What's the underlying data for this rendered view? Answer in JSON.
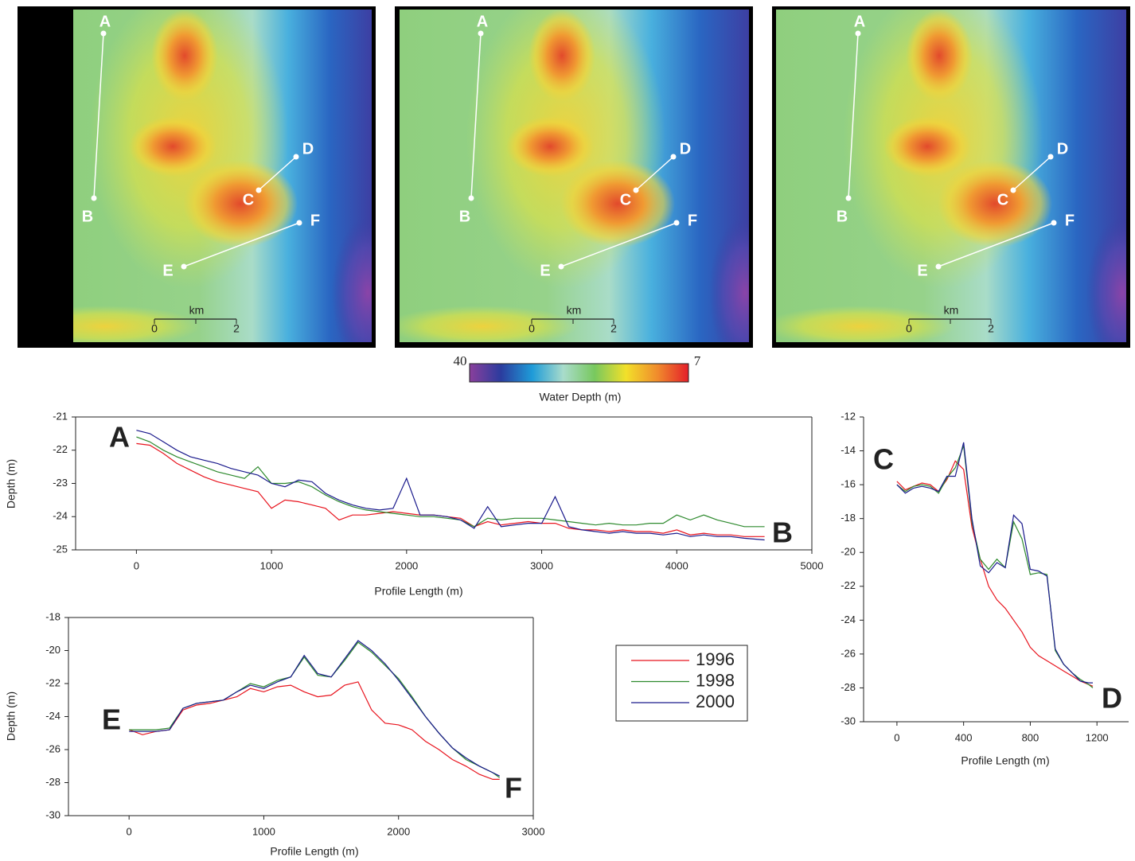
{
  "maps": [
    {
      "points": [
        "A",
        "B",
        "C",
        "D",
        "E",
        "F"
      ],
      "scale_title": "km",
      "scale_ticks": [
        0,
        2
      ]
    },
    {
      "points": [
        "A",
        "B",
        "C",
        "D",
        "E",
        "F"
      ],
      "scale_title": "km",
      "scale_ticks": [
        0,
        2
      ]
    },
    {
      "points": [
        "A",
        "B",
        "C",
        "D",
        "E",
        "F"
      ],
      "scale_title": "km",
      "scale_ticks": [
        0,
        2
      ]
    }
  ],
  "colorbar": {
    "range": [
      40,
      7
    ],
    "title": "Water Depth (m)",
    "colors": [
      "#8a3f9c",
      "#2b3c9e",
      "#1e9bd8",
      "#a9dccb",
      "#78c85e",
      "#f2e02a",
      "#f08c2c",
      "#e41e2a"
    ]
  },
  "chart_data": [
    {
      "type": "line",
      "annotations": [
        "A",
        "B"
      ],
      "xlabel": "Profile Length (m)",
      "ylabel": "Depth (m)",
      "xlim": [
        -450,
        5000
      ],
      "xticks": [
        0,
        1000,
        2000,
        3000,
        4000,
        5000
      ],
      "ylim": [
        -25,
        -21
      ],
      "yticks": [
        -21,
        -22,
        -23,
        -24,
        -25
      ],
      "x": [
        0,
        100,
        200,
        300,
        400,
        500,
        600,
        700,
        800,
        900,
        1000,
        1100,
        1200,
        1300,
        1400,
        1500,
        1600,
        1700,
        1800,
        1900,
        2000,
        2100,
        2200,
        2300,
        2400,
        2500,
        2600,
        2700,
        2800,
        2900,
        3000,
        3100,
        3200,
        3300,
        3400,
        3500,
        3600,
        3700,
        3800,
        3900,
        4000,
        4100,
        4200,
        4300,
        4400,
        4500,
        4650
      ],
      "series": [
        {
          "name": "1996",
          "color": "#e8141e",
          "values": [
            -21.8,
            -21.85,
            -22.1,
            -22.4,
            -22.6,
            -22.8,
            -22.95,
            -23.05,
            -23.15,
            -23.25,
            -23.75,
            -23.5,
            -23.55,
            -23.65,
            -23.75,
            -24.1,
            -23.95,
            -23.95,
            -23.9,
            -23.85,
            -23.9,
            -23.95,
            -23.95,
            -24.0,
            -24.05,
            -24.3,
            -24.15,
            -24.25,
            -24.2,
            -24.15,
            -24.2,
            -24.2,
            -24.35,
            -24.4,
            -24.4,
            -24.45,
            -24.4,
            -24.45,
            -24.45,
            -24.5,
            -24.4,
            -24.55,
            -24.5,
            -24.55,
            -24.55,
            -24.6,
            -24.6
          ]
        },
        {
          "name": "1998",
          "color": "#2e8a2e",
          "values": [
            -21.6,
            -21.75,
            -22.0,
            -22.2,
            -22.35,
            -22.5,
            -22.65,
            -22.75,
            -22.85,
            -22.5,
            -23.0,
            -23.0,
            -22.95,
            -23.1,
            -23.35,
            -23.55,
            -23.7,
            -23.8,
            -23.85,
            -23.9,
            -23.95,
            -24.0,
            -24.0,
            -24.05,
            -24.1,
            -24.3,
            -24.05,
            -24.1,
            -24.05,
            -24.05,
            -24.05,
            -24.1,
            -24.15,
            -24.2,
            -24.25,
            -24.2,
            -24.25,
            -24.25,
            -24.2,
            -24.2,
            -23.95,
            -24.1,
            -23.95,
            -24.1,
            -24.2,
            -24.3,
            -24.3
          ]
        },
        {
          "name": "2000",
          "color": "#1a1a8c",
          "values": [
            -21.4,
            -21.5,
            -21.75,
            -22.0,
            -22.2,
            -22.3,
            -22.4,
            -22.55,
            -22.65,
            -22.75,
            -23.0,
            -23.1,
            -22.9,
            -22.95,
            -23.3,
            -23.5,
            -23.65,
            -23.75,
            -23.8,
            -23.75,
            -22.85,
            -23.95,
            -23.95,
            -24.0,
            -24.1,
            -24.35,
            -23.7,
            -24.3,
            -24.25,
            -24.2,
            -24.2,
            -23.4,
            -24.3,
            -24.4,
            -24.45,
            -24.5,
            -24.45,
            -24.5,
            -24.5,
            -24.55,
            -24.5,
            -24.6,
            -24.55,
            -24.6,
            -24.6,
            -24.65,
            -24.7
          ]
        }
      ]
    },
    {
      "type": "line",
      "annotations": [
        "C",
        "D"
      ],
      "xlabel": "Profile Length (m)",
      "xlim": [
        -200,
        1390
      ],
      "xticks": [
        0,
        400,
        800,
        1200
      ],
      "ylim": [
        -30,
        -12
      ],
      "yticks": [
        -12,
        -14,
        -16,
        -18,
        -20,
        -22,
        -24,
        -26,
        -28,
        -30
      ],
      "x": [
        0,
        50,
        100,
        150,
        200,
        250,
        300,
        350,
        400,
        450,
        500,
        550,
        600,
        650,
        700,
        750,
        800,
        850,
        900,
        950,
        1000,
        1050,
        1100,
        1150,
        1175
      ],
      "series": [
        {
          "name": "1996",
          "color": "#e8141e",
          "values": [
            -15.8,
            -16.3,
            -16.1,
            -15.9,
            -16.0,
            -16.4,
            -15.7,
            -14.6,
            -15.1,
            -18.5,
            -20.4,
            -22.0,
            -22.8,
            -23.3,
            -24.0,
            -24.7,
            -25.6,
            -26.1,
            -26.4,
            -26.7,
            -27.0,
            -27.3,
            -27.6,
            -27.8,
            -27.9
          ]
        },
        {
          "name": "1998",
          "color": "#2e8a2e",
          "values": [
            -16.0,
            -16.4,
            -16.1,
            -16.0,
            -16.1,
            -16.5,
            -15.6,
            -15.0,
            -13.7,
            -18.2,
            -20.4,
            -21.0,
            -20.4,
            -20.9,
            -18.2,
            -19.2,
            -21.3,
            -21.2,
            -21.3,
            -25.8,
            -26.6,
            -27.1,
            -27.5,
            -27.8,
            -28.0
          ]
        },
        {
          "name": "2000",
          "color": "#1a1a8c",
          "values": [
            -16.0,
            -16.5,
            -16.2,
            -16.1,
            -16.2,
            -16.4,
            -15.5,
            -15.5,
            -13.5,
            -18.0,
            -20.8,
            -21.2,
            -20.6,
            -20.9,
            -17.8,
            -18.3,
            -21.0,
            -21.1,
            -21.4,
            -25.7,
            -26.6,
            -27.1,
            -27.6,
            -27.7,
            -27.7
          ]
        }
      ]
    },
    {
      "type": "line",
      "annotations": [
        "E",
        "F"
      ],
      "xlabel": "Profile Length (m)",
      "ylabel": "Depth (m)",
      "xlim": [
        -450,
        3000
      ],
      "xticks": [
        0,
        1000,
        2000,
        3000
      ],
      "ylim": [
        -30,
        -18
      ],
      "yticks": [
        -18,
        -20,
        -22,
        -24,
        -26,
        -28,
        -30
      ],
      "x": [
        0,
        100,
        200,
        300,
        400,
        500,
        600,
        700,
        800,
        900,
        1000,
        1100,
        1200,
        1300,
        1400,
        1500,
        1600,
        1700,
        1800,
        1900,
        2000,
        2100,
        2200,
        2300,
        2400,
        2500,
        2600,
        2700,
        2750
      ],
      "series": [
        {
          "name": "1996",
          "color": "#e8141e",
          "values": [
            -24.8,
            -25.1,
            -24.9,
            -24.8,
            -23.6,
            -23.3,
            -23.2,
            -23.0,
            -22.8,
            -22.3,
            -22.5,
            -22.2,
            -22.1,
            -22.5,
            -22.8,
            -22.7,
            -22.1,
            -21.9,
            -23.6,
            -24.4,
            -24.5,
            -24.8,
            -25.5,
            -26.0,
            -26.6,
            -27.0,
            -27.5,
            -27.8,
            -27.8
          ]
        },
        {
          "name": "1998",
          "color": "#2e8a2e",
          "values": [
            -24.8,
            -24.8,
            -24.8,
            -24.7,
            -23.5,
            -23.2,
            -23.1,
            -23.0,
            -22.5,
            -22.0,
            -22.2,
            -21.8,
            -21.6,
            -20.4,
            -21.5,
            -21.6,
            -20.6,
            -19.5,
            -20.1,
            -20.9,
            -21.7,
            -22.8,
            -24.0,
            -25.0,
            -25.9,
            -26.6,
            -27.0,
            -27.4,
            -27.7
          ]
        },
        {
          "name": "2000",
          "color": "#1a1a8c",
          "values": [
            -24.9,
            -24.9,
            -24.9,
            -24.8,
            -23.5,
            -23.2,
            -23.1,
            -23.0,
            -22.5,
            -22.1,
            -22.3,
            -21.9,
            -21.6,
            -20.3,
            -21.4,
            -21.6,
            -20.5,
            -19.4,
            -20.0,
            -20.8,
            -21.8,
            -22.9,
            -24.0,
            -25.0,
            -25.9,
            -26.5,
            -27.0,
            -27.4,
            -27.6
          ]
        }
      ]
    }
  ]
}
